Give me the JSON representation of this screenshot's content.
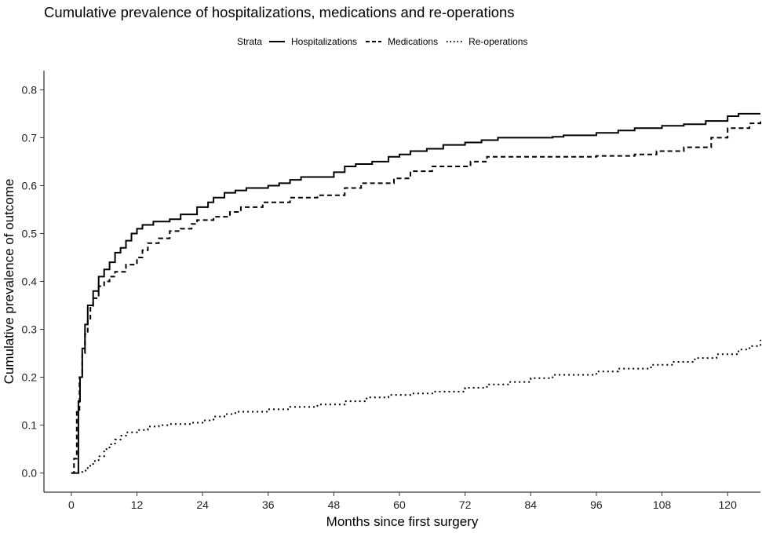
{
  "chart_data": {
    "type": "line",
    "subtype": "step",
    "title": "Cumulative prevalence of hospitalizations, medications and re-operations",
    "xlabel": "Months since first surgery",
    "ylabel": "Cumulative prevalence of outcome",
    "xlim": [
      -5,
      126
    ],
    "ylim": [
      -0.04,
      0.84
    ],
    "xticks": [
      0,
      12,
      24,
      36,
      48,
      60,
      72,
      84,
      96,
      108,
      120
    ],
    "yticks": [
      0.0,
      0.1,
      0.2,
      0.3,
      0.4,
      0.5,
      0.6,
      0.7,
      0.8
    ],
    "ytick_labels": [
      "0.0",
      "0.1",
      "0.2",
      "0.3",
      "0.4",
      "0.5",
      "0.6",
      "0.7",
      "0.8"
    ],
    "legend": {
      "title": "Strata",
      "position": "top"
    },
    "grid": false,
    "series": [
      {
        "name": "Hospitalizations",
        "style": "solid",
        "color": "#000000",
        "points": [
          [
            0,
            0
          ],
          [
            1.2,
            0
          ],
          [
            1.3,
            0.15
          ],
          [
            1.6,
            0.2
          ],
          [
            2,
            0.26
          ],
          [
            2.5,
            0.31
          ],
          [
            3,
            0.35
          ],
          [
            4,
            0.38
          ],
          [
            5,
            0.41
          ],
          [
            6,
            0.425
          ],
          [
            7,
            0.44
          ],
          [
            8,
            0.46
          ],
          [
            9,
            0.47
          ],
          [
            10,
            0.485
          ],
          [
            11,
            0.5
          ],
          [
            12,
            0.51
          ],
          [
            13,
            0.518
          ],
          [
            15,
            0.525
          ],
          [
            18,
            0.53
          ],
          [
            20,
            0.54
          ],
          [
            23,
            0.555
          ],
          [
            25,
            0.565
          ],
          [
            26,
            0.575
          ],
          [
            28,
            0.585
          ],
          [
            30,
            0.59
          ],
          [
            32,
            0.595
          ],
          [
            36,
            0.6
          ],
          [
            38,
            0.605
          ],
          [
            40,
            0.612
          ],
          [
            42,
            0.618
          ],
          [
            48,
            0.628
          ],
          [
            50,
            0.64
          ],
          [
            52,
            0.645
          ],
          [
            55,
            0.65
          ],
          [
            58,
            0.66
          ],
          [
            60,
            0.665
          ],
          [
            62,
            0.672
          ],
          [
            65,
            0.677
          ],
          [
            68,
            0.685
          ],
          [
            72,
            0.69
          ],
          [
            75,
            0.695
          ],
          [
            78,
            0.7
          ],
          [
            84,
            0.7
          ],
          [
            88,
            0.702
          ],
          [
            90,
            0.705
          ],
          [
            96,
            0.71
          ],
          [
            100,
            0.715
          ],
          [
            103,
            0.72
          ],
          [
            108,
            0.725
          ],
          [
            112,
            0.728
          ],
          [
            116,
            0.735
          ],
          [
            120,
            0.745
          ],
          [
            122,
            0.75
          ],
          [
            126,
            0.75
          ]
        ]
      },
      {
        "name": "Medications",
        "style": "dashed",
        "color": "#000000",
        "points": [
          [
            0,
            0
          ],
          [
            0.5,
            0.03
          ],
          [
            1,
            0.13
          ],
          [
            1.5,
            0.2
          ],
          [
            2,
            0.25
          ],
          [
            2.5,
            0.29
          ],
          [
            3,
            0.32
          ],
          [
            3.5,
            0.345
          ],
          [
            4,
            0.365
          ],
          [
            5,
            0.39
          ],
          [
            6,
            0.4
          ],
          [
            7,
            0.41
          ],
          [
            8,
            0.42
          ],
          [
            10,
            0.435
          ],
          [
            12,
            0.45
          ],
          [
            13,
            0.465
          ],
          [
            14,
            0.48
          ],
          [
            16,
            0.49
          ],
          [
            18,
            0.505
          ],
          [
            20,
            0.51
          ],
          [
            22,
            0.52
          ],
          [
            23,
            0.528
          ],
          [
            26,
            0.535
          ],
          [
            29,
            0.545
          ],
          [
            31,
            0.555
          ],
          [
            35,
            0.565
          ],
          [
            40,
            0.575
          ],
          [
            45,
            0.58
          ],
          [
            50,
            0.595
          ],
          [
            53,
            0.605
          ],
          [
            59,
            0.615
          ],
          [
            62,
            0.63
          ],
          [
            66,
            0.64
          ],
          [
            73,
            0.65
          ],
          [
            76,
            0.66
          ],
          [
            82,
            0.66
          ],
          [
            96,
            0.662
          ],
          [
            103,
            0.665
          ],
          [
            107,
            0.672
          ],
          [
            112,
            0.68
          ],
          [
            117,
            0.7
          ],
          [
            120,
            0.72
          ],
          [
            124,
            0.73
          ],
          [
            126,
            0.74
          ]
        ]
      },
      {
        "name": "Re-operations",
        "style": "dotted",
        "color": "#000000",
        "points": [
          [
            1.2,
            0
          ],
          [
            2,
            0.005
          ],
          [
            3,
            0.015
          ],
          [
            4,
            0.025
          ],
          [
            5,
            0.035
          ],
          [
            6,
            0.05
          ],
          [
            7,
            0.06
          ],
          [
            8,
            0.07
          ],
          [
            9,
            0.078
          ],
          [
            10,
            0.085
          ],
          [
            12,
            0.09
          ],
          [
            14,
            0.097
          ],
          [
            16,
            0.1
          ],
          [
            18,
            0.102
          ],
          [
            22,
            0.105
          ],
          [
            24,
            0.11
          ],
          [
            26,
            0.118
          ],
          [
            28,
            0.123
          ],
          [
            30,
            0.128
          ],
          [
            36,
            0.133
          ],
          [
            40,
            0.138
          ],
          [
            45,
            0.143
          ],
          [
            50,
            0.15
          ],
          [
            54,
            0.158
          ],
          [
            58,
            0.163
          ],
          [
            62,
            0.166
          ],
          [
            66,
            0.17
          ],
          [
            72,
            0.178
          ],
          [
            76,
            0.185
          ],
          [
            80,
            0.19
          ],
          [
            84,
            0.198
          ],
          [
            88,
            0.205
          ],
          [
            96,
            0.212
          ],
          [
            100,
            0.218
          ],
          [
            106,
            0.226
          ],
          [
            110,
            0.232
          ],
          [
            114,
            0.24
          ],
          [
            118,
            0.248
          ],
          [
            122,
            0.258
          ],
          [
            124,
            0.265
          ],
          [
            126,
            0.278
          ]
        ]
      }
    ]
  }
}
